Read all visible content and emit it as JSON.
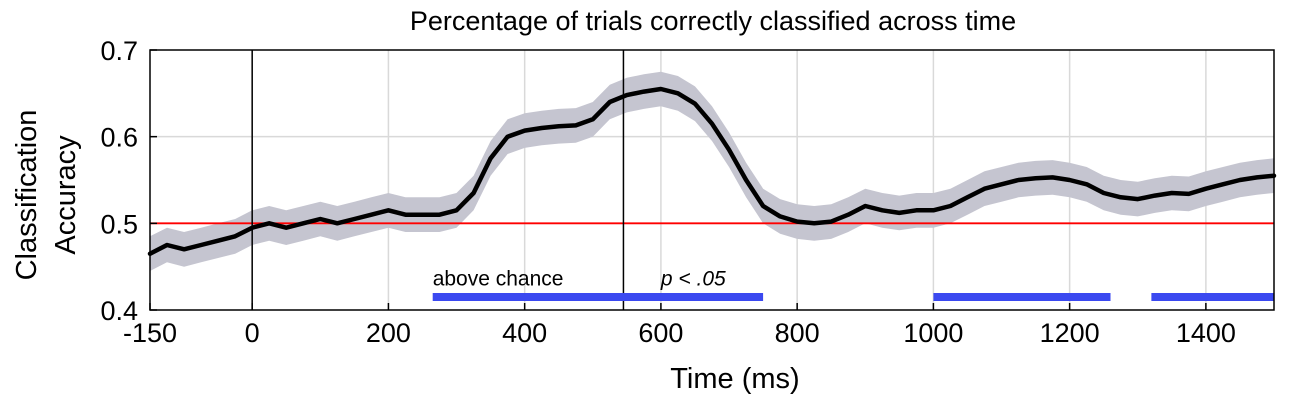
{
  "chart_data": {
    "type": "line",
    "title": "Percentage of trials correctly classified across time",
    "xlabel": "Time (ms)",
    "ylabel": [
      "Classification",
      "Accuracy"
    ],
    "xlim": [
      -150,
      1500
    ],
    "ylim": [
      0.4,
      0.7
    ],
    "xticks": [
      -150,
      0,
      200,
      400,
      600,
      800,
      1000,
      1200,
      1400
    ],
    "xtick_labels": [
      "-150",
      "0",
      "200",
      "400",
      "600",
      "800",
      "1000",
      "1200",
      "1400"
    ],
    "yticks": [
      0.4,
      0.5,
      0.6,
      0.7
    ],
    "ytick_labels": [
      "0.4",
      "0.5",
      "0.6",
      "0.7"
    ],
    "grid": true,
    "colors": {
      "line": "#000000",
      "band": "#c5c5d0",
      "chance": "#ff0000",
      "significance": "#3b49f0"
    },
    "series": [
      {
        "x": [
          -150,
          -125,
          -100,
          -75,
          -50,
          -25,
          0,
          25,
          50,
          75,
          100,
          125,
          150,
          175,
          200,
          225,
          250,
          275,
          300,
          325,
          350,
          375,
          400,
          425,
          450,
          475,
          500,
          525,
          550,
          575,
          600,
          625,
          650,
          675,
          700,
          725,
          750,
          775,
          800,
          825,
          850,
          875,
          900,
          925,
          950,
          975,
          1000,
          1025,
          1050,
          1075,
          1100,
          1125,
          1150,
          1175,
          1200,
          1225,
          1250,
          1275,
          1300,
          1325,
          1350,
          1375,
          1400,
          1425,
          1450,
          1475,
          1500
        ],
        "y": [
          0.465,
          0.475,
          0.47,
          0.475,
          0.48,
          0.485,
          0.495,
          0.5,
          0.495,
          0.5,
          0.505,
          0.5,
          0.505,
          0.51,
          0.515,
          0.51,
          0.51,
          0.51,
          0.515,
          0.535,
          0.575,
          0.6,
          0.607,
          0.61,
          0.612,
          0.613,
          0.62,
          0.64,
          0.648,
          0.652,
          0.655,
          0.65,
          0.638,
          0.615,
          0.585,
          0.55,
          0.52,
          0.508,
          0.502,
          0.5,
          0.502,
          0.51,
          0.52,
          0.515,
          0.512,
          0.515,
          0.515,
          0.52,
          0.53,
          0.54,
          0.545,
          0.55,
          0.552,
          0.553,
          0.55,
          0.545,
          0.535,
          0.53,
          0.528,
          0.532,
          0.535,
          0.534,
          0.54,
          0.545,
          0.55,
          0.553,
          0.555
        ],
        "ci_halfwidth": 0.02
      }
    ],
    "reference_line": {
      "y": 0.5
    },
    "significance_bars": [
      {
        "start": 265,
        "end": 750,
        "y": 0.415
      },
      {
        "start": 1000,
        "end": 1260,
        "y": 0.415
      },
      {
        "start": 1320,
        "end": 1500,
        "y": 0.415
      }
    ],
    "vertical_lines": [
      0,
      545
    ],
    "annotations": [
      {
        "text": "above chance",
        "italic": false,
        "x": 265,
        "y": 0.428
      },
      {
        "text": "p < .05",
        "italic": true,
        "x": 600,
        "y": 0.428
      }
    ]
  }
}
